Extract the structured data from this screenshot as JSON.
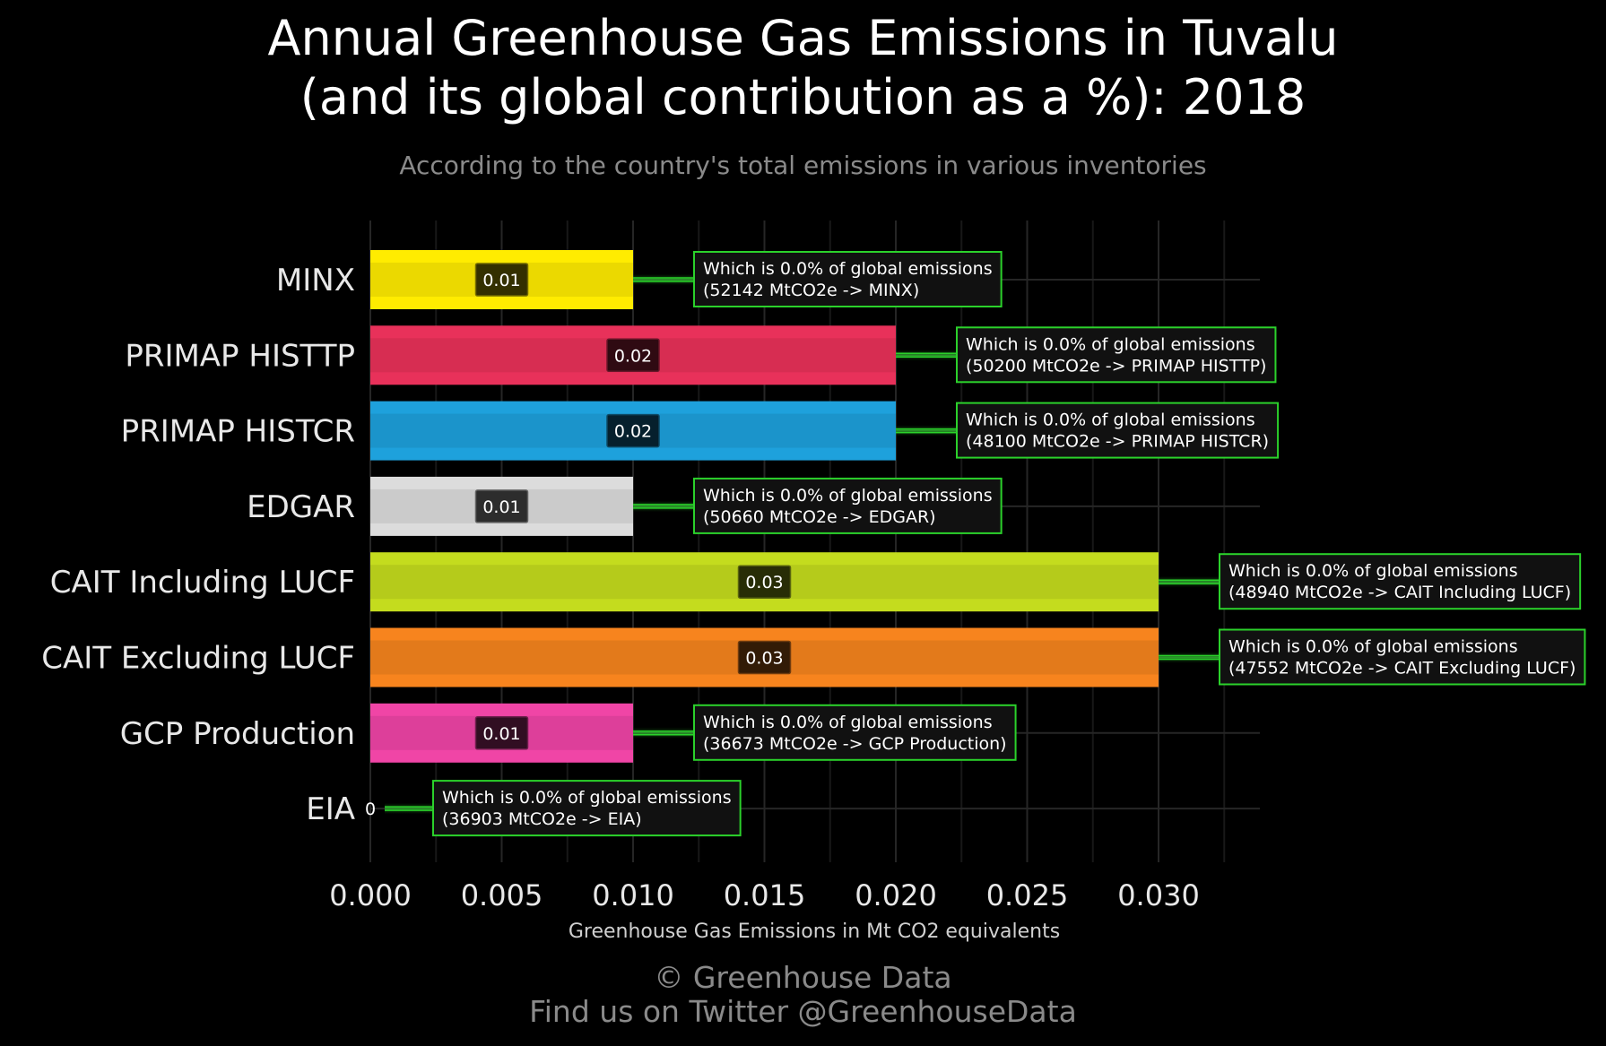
{
  "title_line1": "Annual Greenhouse Gas Emissions in Tuvalu",
  "title_line2": "(and its global contribution as a %): 2018",
  "subtitle": "According to the country's total emissions in various inventories",
  "footer_line1": "© Greenhouse Data",
  "footer_line2": "Find us on Twitter @GreenhouseData",
  "chart_data": {
    "type": "bar",
    "orientation": "horizontal",
    "xlabel": "Greenhouse Gas Emissions in Mt CO2 equivalents",
    "xlim": [
      0,
      0.034
    ],
    "xticks": [
      "0.000",
      "0.005",
      "0.010",
      "0.015",
      "0.020",
      "0.025",
      "0.030"
    ],
    "grid": true,
    "categories": [
      "MINX",
      "PRIMAP HISTTP",
      "PRIMAP HISTCR",
      "EDGAR",
      "CAIT Including LUCF",
      "CAIT Excluding LUCF",
      "GCP Production",
      "EIA"
    ],
    "values": [
      0.01,
      0.02,
      0.02,
      0.01,
      0.03,
      0.03,
      0.01,
      0
    ],
    "value_labels": [
      "0.01",
      "0.02",
      "0.02",
      "0.01",
      "0.03",
      "0.03",
      "0.01",
      "0"
    ],
    "colors": [
      "#ffec00",
      "#e8315a",
      "#1ea1dc",
      "#dcdcdc",
      "#c4dc1e",
      "#f7841e",
      "#f045a6",
      "#888888"
    ],
    "annotations": [
      {
        "line1": "Which is 0.0% of global emissions",
        "line2": "(52142 MtCO2e -> MINX)"
      },
      {
        "line1": "Which is 0.0% of global emissions",
        "line2": "(50200 MtCO2e -> PRIMAP HISTTP)"
      },
      {
        "line1": "Which is 0.0% of global emissions",
        "line2": "(48100 MtCO2e -> PRIMAP HISTCR)"
      },
      {
        "line1": "Which is 0.0% of global emissions",
        "line2": "(50660 MtCO2e -> EDGAR)"
      },
      {
        "line1": "Which is 0.0% of global emissions",
        "line2": "(48940 MtCO2e -> CAIT Including LUCF)"
      },
      {
        "line1": "Which is 0.0% of global emissions",
        "line2": "(47552 MtCO2e -> CAIT Excluding LUCF)"
      },
      {
        "line1": "Which is 0.0% of global emissions",
        "line2": "(36673 MtCO2e -> GCP Production)"
      },
      {
        "line1": "Which is 0.0% of global emissions",
        "line2": "(36903 MtCO2e -> EIA)"
      }
    ],
    "accent_color": "#2bd12b"
  }
}
